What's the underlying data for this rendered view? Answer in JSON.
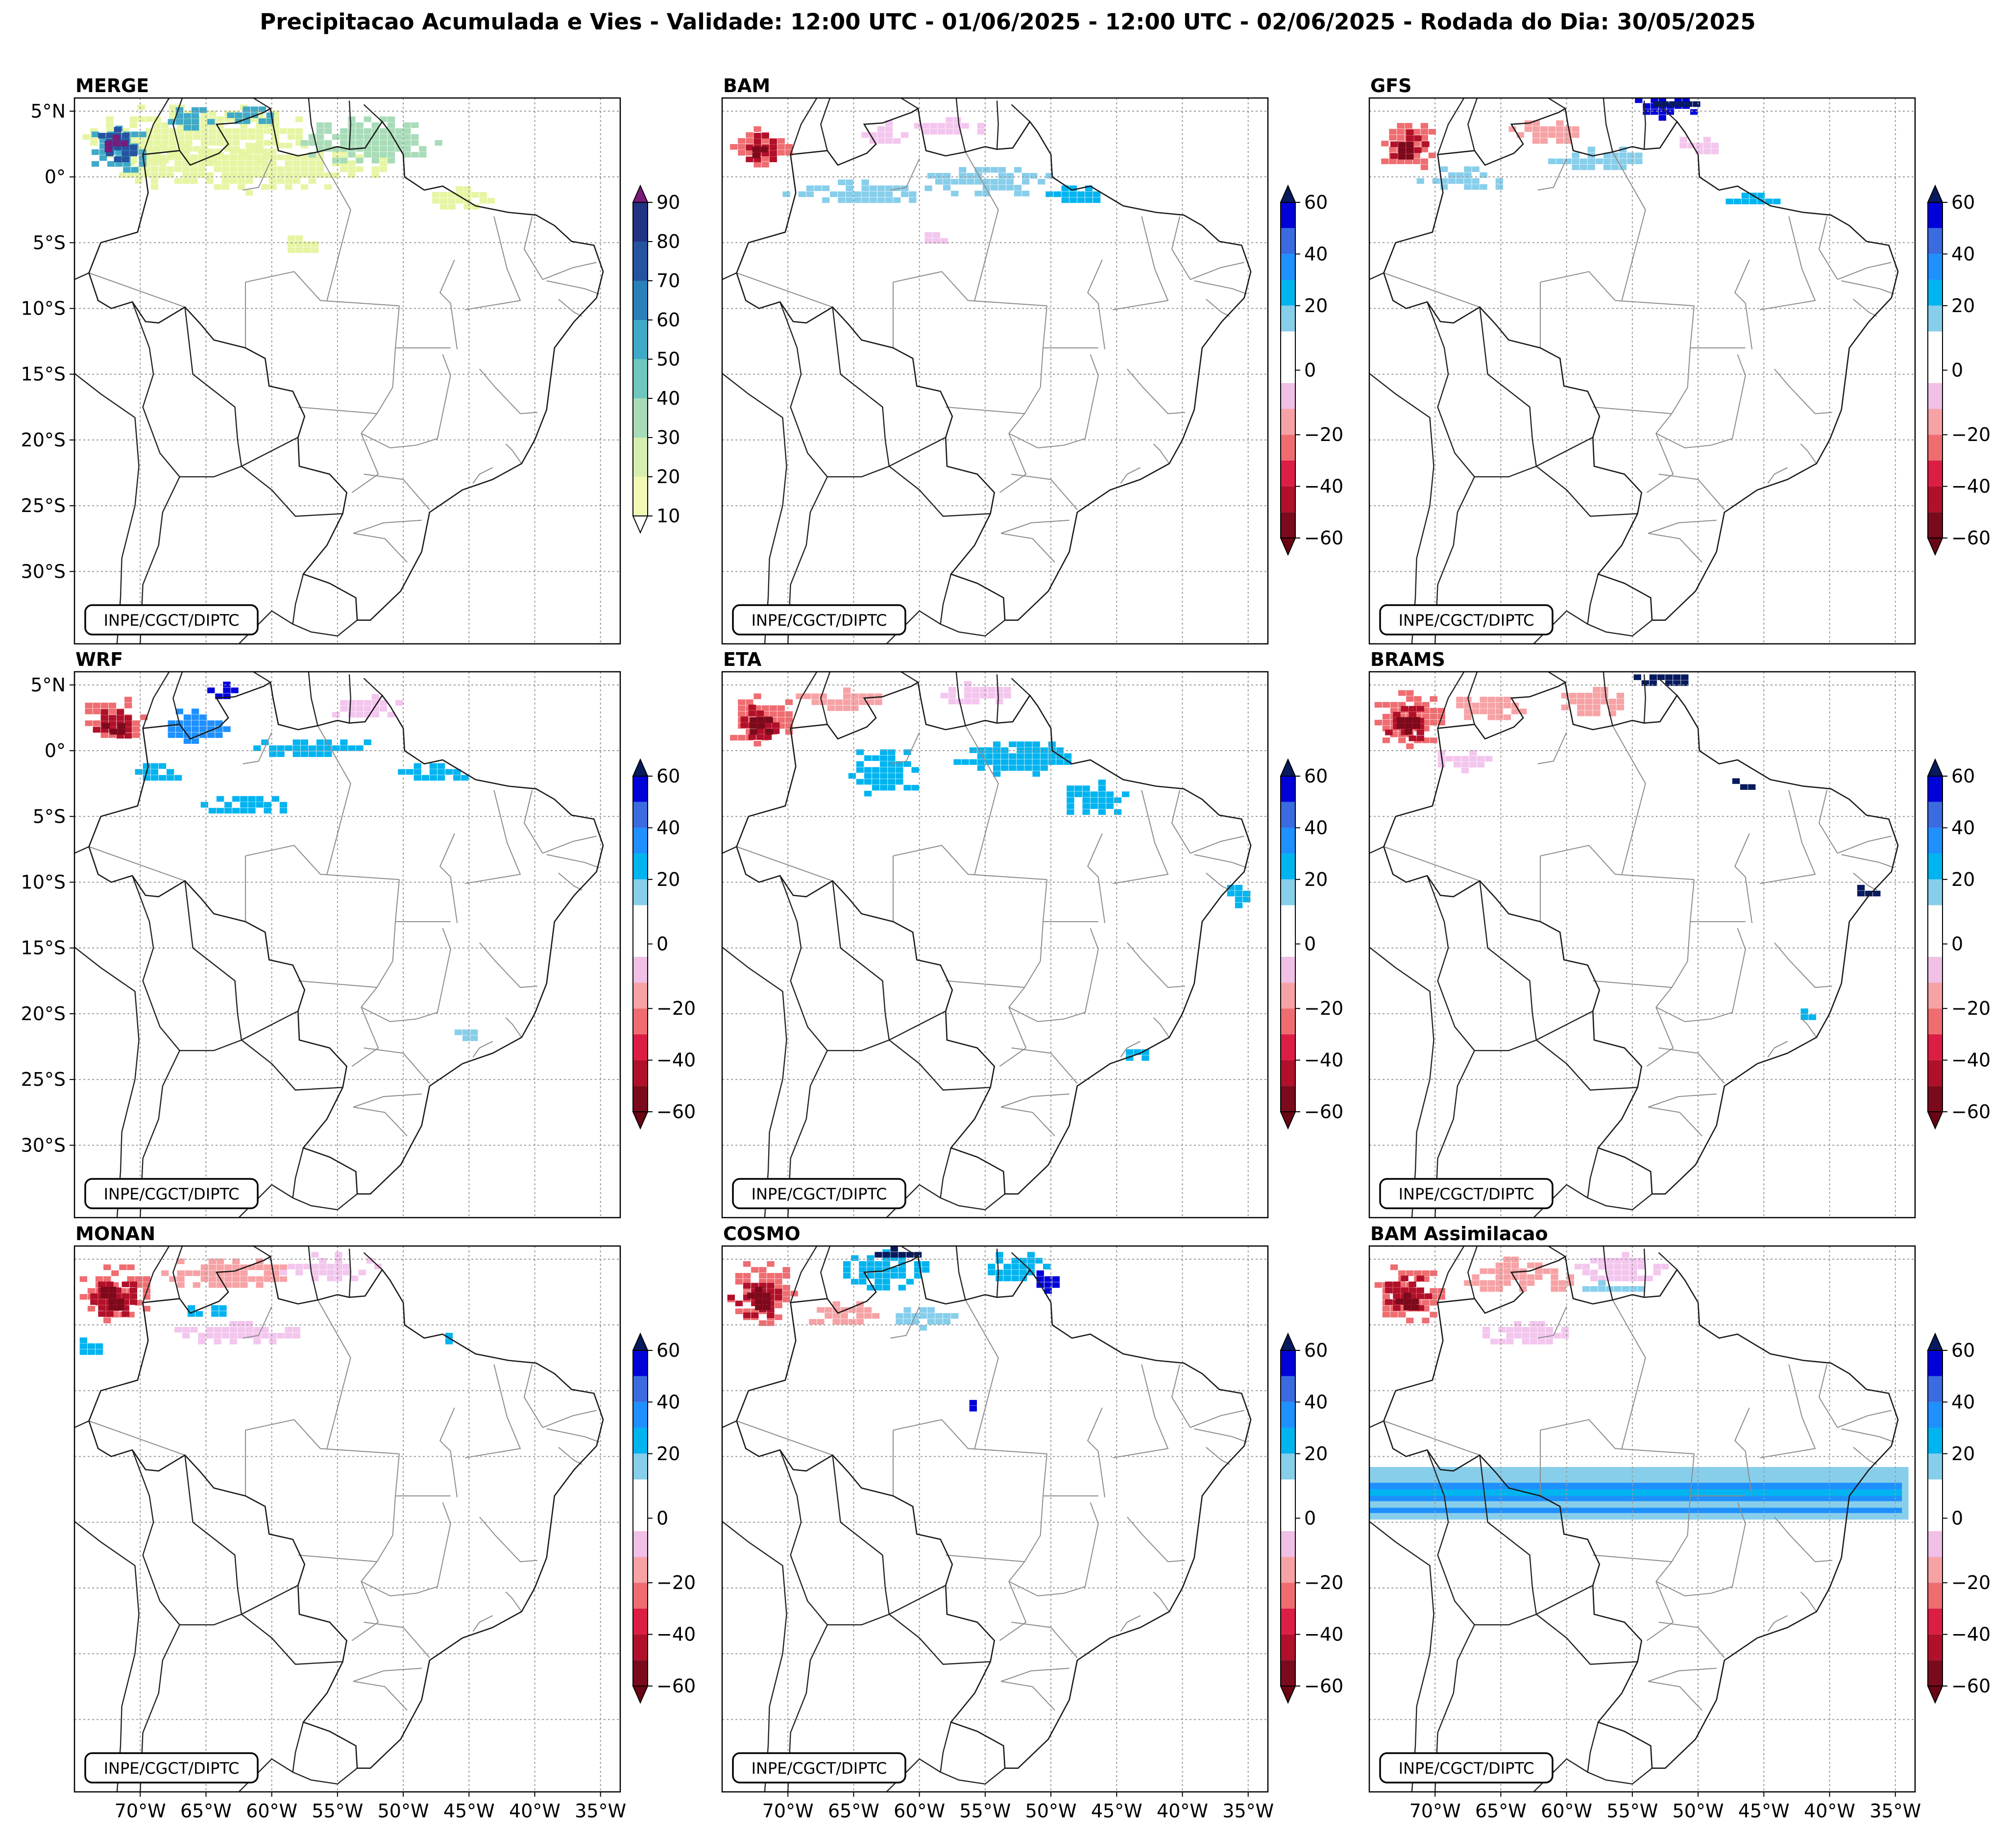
{
  "figure": {
    "title": "Precipitacao Acumulada e Vies - Validade: 12:00 UTC - 01/06/2025 - 12:00 UTC - 02/06/2025 - Rodada do Dia: 30/05/2025"
  },
  "credit": "INPE/CGCT/DIPTC",
  "lat_labels": [
    "5°N",
    "0°",
    "5°S",
    "10°S",
    "15°S",
    "20°S",
    "25°S",
    "30°S"
  ],
  "lon_labels": [
    "70°W",
    "65°W",
    "60°W",
    "55°W",
    "50°W",
    "45°W",
    "40°W",
    "35°W"
  ],
  "merge_colorbar": {
    "ticks": [
      "10",
      "20",
      "30",
      "40",
      "50",
      "60",
      "70",
      "80",
      "90"
    ],
    "colors": [
      "#f2f9b6",
      "#d6efb0",
      "#a8dcb8",
      "#6fc6bf",
      "#3fa9c8",
      "#2a80b9",
      "#2553a0",
      "#213383",
      "#0d1a4f"
    ],
    "over": "#7a1a7a",
    "under": "#ffffff"
  },
  "bias_colorbar": {
    "ticks": [
      "60",
      "40",
      "20",
      "0",
      "−20",
      "−40",
      "−60"
    ],
    "colors": [
      "#0000d9",
      "#3a6be0",
      "#1e90ff",
      "#00b4f0",
      "#87ceeb",
      "#ffffff",
      "#ffffff",
      "#f0c0e6",
      "#f7a2a5",
      "#ef6c70",
      "#dc1e45",
      "#b0102a",
      "#7a0a1c"
    ],
    "over": "#071a5e",
    "under": "#6a0514"
  },
  "panels": [
    {
      "id": "merge",
      "title": "MERGE"
    },
    {
      "id": "bam",
      "title": "BAM"
    },
    {
      "id": "gfs",
      "title": "GFS"
    },
    {
      "id": "wrf",
      "title": "WRF"
    },
    {
      "id": "eta",
      "title": "ETA"
    },
    {
      "id": "brams",
      "title": "BRAMS"
    },
    {
      "id": "monan",
      "title": "MONAN"
    },
    {
      "id": "cosmo",
      "title": "COSMO"
    },
    {
      "id": "bam_assim",
      "title": "BAM Assimilacao"
    }
  ],
  "palette": {
    "dry_bias": [
      "#f3c6ee",
      "#f7a2a5",
      "#ef6c70",
      "#dc1e45",
      "#b0102a",
      "#7a0a1c"
    ],
    "wet_bias": [
      "#87ceeb",
      "#00b4f0",
      "#1e90ff",
      "#3a6be0",
      "#0000d9",
      "#071a5e"
    ],
    "merge": [
      "#e6f5a3",
      "#a8dcb8",
      "#3fa9c8",
      "#2553a0",
      "#0d1a4f",
      "#7a1a7a"
    ]
  }
}
